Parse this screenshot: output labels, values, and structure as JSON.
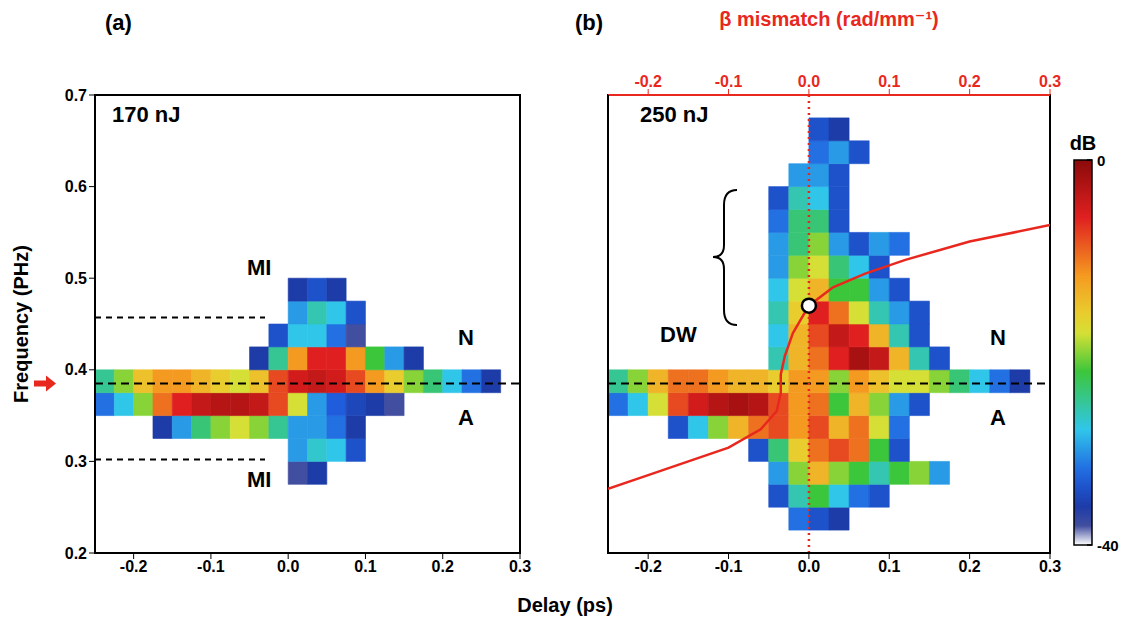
{
  "chart_data": [
    {
      "type": "heatmap",
      "panel": "(a)",
      "title": "170 nJ",
      "ylabel": "Frequency (PHz)",
      "xlabel": "Delay (ps)",
      "xlim": [
        -0.25,
        0.3
      ],
      "xticks": [
        -0.2,
        -0.1,
        {
          "value": 0,
          "label": "0.0"
        },
        0.1,
        0.2,
        0.3
      ],
      "ylim": [
        0.2,
        0.7
      ],
      "yticks": [
        0.2,
        0.3,
        0.4,
        0.5,
        0.6,
        0.7
      ],
      "delay": [
        -0.2375,
        -0.2125,
        -0.1875,
        -0.1625,
        -0.1375,
        -0.1125,
        -0.0875,
        -0.0625,
        -0.0375,
        -0.0125,
        0.0125,
        0.0375,
        0.0625,
        0.0875,
        0.1125,
        0.1375,
        0.1625,
        0.1875,
        0.2125,
        0.2375,
        0.2625,
        0.2875
      ],
      "frequency": [
        0.2125,
        0.2375,
        0.2625,
        0.2875,
        0.3125,
        0.3375,
        0.3625,
        0.3875,
        0.4125,
        0.4375,
        0.4625,
        0.4875,
        0.5125,
        0.5375,
        0.5625,
        0.5875,
        0.6125,
        0.6375,
        0.6625,
        0.6875
      ],
      "cells": [
        [
          null,
          null,
          null,
          null,
          null,
          null,
          null,
          null,
          null,
          null,
          null,
          null,
          null,
          null,
          null,
          null,
          null,
          null,
          null,
          null,
          null,
          null
        ],
        [
          null,
          null,
          null,
          null,
          null,
          null,
          null,
          null,
          null,
          null,
          null,
          null,
          null,
          null,
          null,
          null,
          null,
          null,
          null,
          null,
          null,
          null
        ],
        [
          null,
          null,
          null,
          null,
          null,
          null,
          null,
          null,
          null,
          null,
          null,
          null,
          null,
          null,
          null,
          null,
          null,
          null,
          null,
          null,
          null,
          null
        ],
        [
          null,
          null,
          null,
          null,
          null,
          null,
          null,
          null,
          null,
          null,
          -38,
          -36,
          null,
          null,
          null,
          null,
          null,
          null,
          null,
          null,
          null,
          null
        ],
        [
          null,
          null,
          null,
          null,
          null,
          null,
          null,
          null,
          null,
          null,
          -30,
          -27,
          -28,
          -34,
          null,
          null,
          null,
          null,
          null,
          null,
          null,
          null
        ],
        [
          null,
          null,
          null,
          -36,
          -30,
          -24,
          -20,
          -18,
          -20,
          -25,
          -30,
          -30,
          -32,
          -36,
          null,
          null,
          null,
          null,
          null,
          null,
          null,
          null
        ],
        [
          -32,
          -28,
          -20,
          -10,
          -6,
          -4,
          -3,
          -3,
          -4,
          -8,
          -18,
          -30,
          -33,
          -35,
          -36,
          -38,
          null,
          null,
          null,
          null,
          null,
          null
        ],
        [
          -25,
          -20,
          -15,
          -12,
          -12,
          -14,
          -16,
          -18,
          -15,
          -8,
          -5,
          -4,
          -5,
          -8,
          -12,
          -16,
          -20,
          -24,
          -28,
          -32,
          -36,
          null
        ],
        [
          null,
          null,
          null,
          null,
          null,
          null,
          null,
          null,
          -36,
          -25,
          -12,
          -6,
          -6,
          -12,
          -22,
          -30,
          -36,
          null,
          null,
          null,
          null,
          null
        ],
        [
          null,
          null,
          null,
          null,
          null,
          null,
          null,
          null,
          null,
          -34,
          -28,
          -28,
          -32,
          -38,
          null,
          null,
          null,
          null,
          null,
          null,
          null,
          null
        ],
        [
          null,
          null,
          null,
          null,
          null,
          null,
          null,
          null,
          null,
          null,
          -30,
          -26,
          -28,
          -34,
          null,
          null,
          null,
          null,
          null,
          null,
          null,
          null
        ],
        [
          null,
          null,
          null,
          null,
          null,
          null,
          null,
          null,
          null,
          null,
          -36,
          -34,
          -36,
          null,
          null,
          null,
          null,
          null,
          null,
          null,
          null,
          null
        ],
        [
          null,
          null,
          null,
          null,
          null,
          null,
          null,
          null,
          null,
          null,
          null,
          null,
          null,
          null,
          null,
          null,
          null,
          null,
          null,
          null,
          null,
          null
        ],
        [
          null,
          null,
          null,
          null,
          null,
          null,
          null,
          null,
          null,
          null,
          null,
          null,
          null,
          null,
          null,
          null,
          null,
          null,
          null,
          null,
          null,
          null
        ],
        [
          null,
          null,
          null,
          null,
          null,
          null,
          null,
          null,
          null,
          null,
          null,
          null,
          null,
          null,
          null,
          null,
          null,
          null,
          null,
          null,
          null,
          null
        ],
        [
          null,
          null,
          null,
          null,
          null,
          null,
          null,
          null,
          null,
          null,
          null,
          null,
          null,
          null,
          null,
          null,
          null,
          null,
          null,
          null,
          null,
          null
        ],
        [
          null,
          null,
          null,
          null,
          null,
          null,
          null,
          null,
          null,
          null,
          null,
          null,
          null,
          null,
          null,
          null,
          null,
          null,
          null,
          null,
          null,
          null
        ],
        [
          null,
          null,
          null,
          null,
          null,
          null,
          null,
          null,
          null,
          null,
          null,
          null,
          null,
          null,
          null,
          null,
          null,
          null,
          null,
          null,
          null,
          null
        ],
        [
          null,
          null,
          null,
          null,
          null,
          null,
          null,
          null,
          null,
          null,
          null,
          null,
          null,
          null,
          null,
          null,
          null,
          null,
          null,
          null,
          null,
          null
        ],
        [
          null,
          null,
          null,
          null,
          null,
          null,
          null,
          null,
          null,
          null,
          null,
          null,
          null,
          null,
          null,
          null,
          null,
          null,
          null,
          null,
          null,
          null
        ]
      ],
      "pump_frequency": 0.385,
      "mi_lines": {
        "frequency": [
          0.457,
          0.302
        ],
        "delay": [
          -0.25,
          -0.03
        ]
      },
      "annotations": [
        "MI",
        "MI",
        "N",
        "A"
      ]
    },
    {
      "type": "heatmap",
      "panel": "(b)",
      "title": "250 nJ",
      "tick_labels": "x",
      "xlim": [
        -0.25,
        0.3
      ],
      "xticks": [
        -0.2,
        -0.1,
        {
          "value": 0,
          "label": "0.0"
        },
        0.1,
        0.2,
        0.3
      ],
      "ylim": [
        0.2,
        0.7
      ],
      "yticks": [
        0.2,
        0.3,
        0.4,
        0.5,
        0.6,
        0.7
      ],
      "top_axis": {
        "label": "β mismatch (rad/mm⁻¹)",
        "xlim": [
          -0.25,
          0.3
        ],
        "xticks": [
          -0.2,
          -0.1,
          {
            "value": 0,
            "label": "0.0"
          },
          0.1,
          0.2,
          0.3
        ],
        "color": "#e8281e"
      },
      "delay": [
        -0.2375,
        -0.2125,
        -0.1875,
        -0.1625,
        -0.1375,
        -0.1125,
        -0.0875,
        -0.0625,
        -0.0375,
        -0.0125,
        0.0125,
        0.0375,
        0.0625,
        0.0875,
        0.1125,
        0.1375,
        0.1625,
        0.1875,
        0.2125,
        0.2375,
        0.2625,
        0.2875
      ],
      "frequency": [
        0.2125,
        0.2375,
        0.2625,
        0.2875,
        0.3125,
        0.3375,
        0.3625,
        0.3875,
        0.4125,
        0.4375,
        0.4625,
        0.4875,
        0.5125,
        0.5375,
        0.5625,
        0.5875,
        0.6125,
        0.6375,
        0.6625,
        0.6875
      ],
      "cells": [
        [
          null,
          null,
          null,
          null,
          null,
          null,
          null,
          null,
          null,
          null,
          null,
          null,
          null,
          null,
          null,
          null,
          null,
          null,
          null,
          null,
          null,
          null
        ],
        [
          null,
          null,
          null,
          null,
          null,
          null,
          null,
          null,
          null,
          -32,
          -34,
          -36,
          null,
          null,
          null,
          null,
          null,
          null,
          null,
          null,
          null,
          null
        ],
        [
          null,
          null,
          null,
          null,
          null,
          null,
          null,
          null,
          -34,
          -26,
          -22,
          -28,
          -32,
          -34,
          null,
          null,
          null,
          null,
          null,
          null,
          null,
          null
        ],
        [
          null,
          null,
          null,
          null,
          null,
          null,
          null,
          null,
          -30,
          -20,
          -14,
          -20,
          -22,
          -26,
          -22,
          -20,
          -30,
          null,
          null,
          null,
          null,
          null
        ],
        [
          null,
          null,
          null,
          null,
          null,
          null,
          null,
          -34,
          -24,
          -16,
          -10,
          -8,
          -10,
          -22,
          -34,
          null,
          null,
          null,
          null,
          null,
          null,
          null
        ],
        [
          null,
          null,
          null,
          -34,
          -28,
          -20,
          -14,
          -10,
          -8,
          -12,
          -8,
          -14,
          -10,
          -18,
          -32,
          null,
          null,
          null,
          null,
          null,
          null,
          null
        ],
        [
          -32,
          -28,
          -18,
          -8,
          -5,
          -3,
          -2,
          -3,
          -8,
          -12,
          -10,
          -22,
          -14,
          -20,
          -30,
          -34,
          null,
          null,
          null,
          null,
          null,
          null
        ],
        [
          -25,
          -20,
          -14,
          -10,
          -10,
          -12,
          -14,
          -14,
          -16,
          -12,
          -12,
          -20,
          -12,
          -15,
          -18,
          -18,
          -20,
          -24,
          -28,
          -32,
          -36,
          null
        ],
        [
          null,
          null,
          null,
          null,
          null,
          null,
          null,
          null,
          -26,
          -14,
          -10,
          -6,
          -2,
          -4,
          -14,
          -26,
          -34,
          null,
          null,
          null,
          null,
          null
        ],
        [
          null,
          null,
          null,
          null,
          null,
          null,
          null,
          null,
          -28,
          -14,
          -8,
          -4,
          -6,
          -14,
          -26,
          -34,
          null,
          null,
          null,
          null,
          null,
          null
        ],
        [
          null,
          null,
          null,
          null,
          null,
          null,
          null,
          null,
          -26,
          -16,
          -6,
          -10,
          -18,
          -26,
          -30,
          -34,
          null,
          null,
          null,
          null,
          null,
          null
        ],
        [
          null,
          null,
          null,
          null,
          null,
          null,
          null,
          null,
          -28,
          -18,
          -14,
          -22,
          -22,
          -30,
          -34,
          null,
          null,
          null,
          null,
          null,
          null,
          null
        ],
        [
          null,
          null,
          null,
          null,
          null,
          null,
          null,
          null,
          -30,
          -20,
          -18,
          -24,
          -28,
          -34,
          null,
          null,
          null,
          null,
          null,
          null,
          null,
          null
        ],
        [
          null,
          null,
          null,
          null,
          null,
          null,
          null,
          null,
          -30,
          -24,
          -20,
          -30,
          -34,
          -30,
          -32,
          null,
          null,
          null,
          null,
          null,
          null,
          null
        ],
        [
          null,
          null,
          null,
          null,
          null,
          null,
          null,
          null,
          -32,
          -24,
          -24,
          -34,
          null,
          null,
          null,
          null,
          null,
          null,
          null,
          null,
          null,
          null
        ],
        [
          null,
          null,
          null,
          null,
          null,
          null,
          null,
          null,
          -34,
          -26,
          -28,
          -34,
          null,
          null,
          null,
          null,
          null,
          null,
          null,
          null,
          null,
          null
        ],
        [
          null,
          null,
          null,
          null,
          null,
          null,
          null,
          null,
          null,
          -30,
          -30,
          -34,
          null,
          null,
          null,
          null,
          null,
          null,
          null,
          null,
          null,
          null
        ],
        [
          null,
          null,
          null,
          null,
          null,
          null,
          null,
          null,
          null,
          null,
          -32,
          -30,
          -34,
          null,
          null,
          null,
          null,
          null,
          null,
          null,
          null,
          null
        ],
        [
          null,
          null,
          null,
          null,
          null,
          null,
          null,
          null,
          null,
          null,
          -34,
          -36,
          null,
          null,
          null,
          null,
          null,
          null,
          null,
          null,
          null,
          null
        ],
        [
          null,
          null,
          null,
          null,
          null,
          null,
          null,
          null,
          null,
          null,
          null,
          null,
          null,
          null,
          null,
          null,
          null,
          null,
          null,
          null,
          null,
          null
        ]
      ],
      "pump_frequency": 0.385,
      "phase_matching": {
        "mismatch": [
          -0.25,
          -0.2,
          -0.15,
          -0.1,
          -0.06,
          -0.04,
          -0.035,
          -0.035,
          -0.03,
          -0.02,
          -0.01,
          0.0,
          0.03,
          0.07,
          0.12,
          0.2,
          0.3
        ],
        "frequency": [
          0.27,
          0.285,
          0.3,
          0.315,
          0.335,
          0.355,
          0.375,
          0.395,
          0.415,
          0.44,
          0.455,
          0.47,
          0.49,
          0.505,
          0.52,
          0.54,
          0.558
        ],
        "color": "#e8281e",
        "point": {
          "mismatch": 0.0,
          "frequency": 0.47
        },
        "zero_line": 0.0
      },
      "colorbar": {
        "label": "dB",
        "range": [
          -40,
          0
        ],
        "ticks": [
          -40,
          0
        ]
      },
      "annotations": [
        "DW",
        "N",
        "A"
      ]
    }
  ]
}
